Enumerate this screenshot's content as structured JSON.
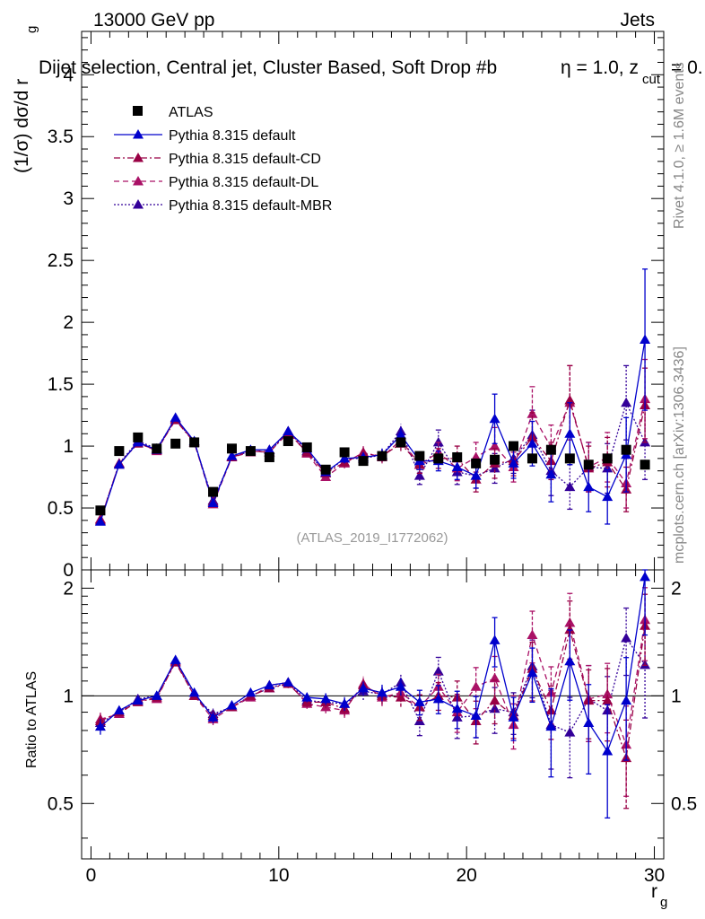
{
  "header": {
    "energy": "13000 GeV pp",
    "process": "Jets",
    "selection": "Dijet selection, Central jet, Cluster Based, Soft Drop #b",
    "eta_part": "η = 1.0, z",
    "zcut_sub": "cut",
    "zcut_tail": "= 0.",
    "rivet": "Rivet 4.1.0, ≥ 1.6M events",
    "mcplots": "mcplots.cern.ch [arXiv:1306.3436]",
    "analysis": "(ATLAS_2019_I1772062)"
  },
  "axes": {
    "y_main": "(1/σ) dσ/d r",
    "y_main_sub": "g",
    "y_ratio": "Ratio to ATLAS",
    "x_label": "r",
    "x_label_sub": "g"
  },
  "colors": {
    "atlas": "#000000",
    "default": "#0000cc",
    "cd": "#990044",
    "dl": "#aa1166",
    "mbr": "#330099"
  },
  "chart_data": {
    "type": "scatter",
    "x": [
      0.5,
      1.5,
      2.5,
      3.5,
      4.5,
      5.5,
      6.5,
      7.5,
      8.5,
      9.5,
      10.5,
      11.5,
      12.5,
      13.5,
      14.5,
      15.5,
      16.5,
      17.5,
      18.5,
      19.5,
      20.5,
      21.5,
      22.5,
      23.5,
      24.5,
      25.5,
      26.5,
      27.5,
      28.5,
      29.5
    ],
    "xlim": [
      -0.5,
      30.5
    ],
    "xticks": [
      0,
      10,
      20,
      30
    ],
    "main_ylim": [
      0,
      4.35
    ],
    "main_yticks": [
      0.5,
      1,
      1.5,
      2,
      2.5,
      3,
      3.5,
      4
    ],
    "main_ytick_labels": [
      "0.5",
      "1",
      "1.5",
      "2",
      "2.5",
      "3",
      "3.5",
      "4"
    ],
    "main_zero_label": "0",
    "ratio_ylim": [
      0.35,
      2.25
    ],
    "ratio_yticks": [
      0.5,
      1,
      2
    ],
    "legend": [
      {
        "key": "atlas",
        "label": "ATLAS",
        "marker": "square",
        "dash": ""
      },
      {
        "key": "default",
        "label": "Pythia 8.315 default",
        "marker": "triangle",
        "dash": ""
      },
      {
        "key": "cd",
        "label": "Pythia 8.315 default-CD",
        "marker": "triangle",
        "dash": "7,3,2,3"
      },
      {
        "key": "dl",
        "label": "Pythia 8.315 default-DL",
        "marker": "triangle",
        "dash": "6,4"
      },
      {
        "key": "mbr",
        "label": "Pythia 8.315 default-MBR",
        "marker": "triangle",
        "dash": "2,2"
      }
    ],
    "atlas": [
      0.48,
      0.96,
      1.07,
      0.98,
      1.02,
      1.03,
      0.63,
      0.98,
      0.96,
      0.91,
      1.04,
      0.99,
      0.81,
      0.95,
      0.88,
      0.92,
      1.03,
      0.92,
      0.9,
      0.91,
      0.86,
      0.89,
      1.0,
      0.9,
      0.97,
      0.9,
      0.85,
      0.9,
      0.97,
      0.85
    ],
    "series": [
      {
        "key": "default",
        "name": "Pythia 8.315 default",
        "values": [
          0.39,
          0.85,
          1.03,
          0.97,
          1.23,
          1.04,
          0.54,
          0.92,
          0.97,
          0.97,
          1.12,
          0.98,
          0.79,
          0.9,
          0.91,
          0.93,
          1.09,
          0.88,
          0.88,
          0.83,
          0.76,
          1.22,
          0.86,
          1.02,
          0.77,
          1.1,
          0.67,
          0.59,
          0.93,
          1.86
        ],
        "err": [
          0.02,
          0.02,
          0.02,
          0.02,
          0.02,
          0.02,
          0.02,
          0.02,
          0.02,
          0.02,
          0.03,
          0.03,
          0.03,
          0.04,
          0.04,
          0.05,
          0.06,
          0.07,
          0.08,
          0.1,
          0.1,
          0.2,
          0.12,
          0.18,
          0.22,
          0.25,
          0.2,
          0.22,
          0.3,
          0.57
        ]
      },
      {
        "key": "cd",
        "name": "Pythia 8.315 default-CD",
        "values": [
          0.4,
          0.86,
          1.02,
          0.97,
          1.21,
          1.03,
          0.55,
          0.91,
          0.96,
          0.95,
          1.11,
          0.95,
          0.78,
          0.87,
          0.94,
          0.92,
          1.02,
          0.85,
          0.9,
          0.9,
          0.73,
          0.86,
          0.88,
          1.07,
          0.88,
          1.37,
          0.82,
          0.87,
          0.65,
          1.33
        ],
        "err": [
          0.02,
          0.02,
          0.02,
          0.02,
          0.02,
          0.02,
          0.02,
          0.02,
          0.02,
          0.02,
          0.03,
          0.03,
          0.03,
          0.04,
          0.05,
          0.05,
          0.06,
          0.07,
          0.08,
          0.1,
          0.1,
          0.12,
          0.12,
          0.2,
          0.15,
          0.28,
          0.18,
          0.2,
          0.18,
          0.3
        ]
      },
      {
        "key": "dl",
        "name": "Pythia 8.315 default-DL",
        "values": [
          0.41,
          0.85,
          1.03,
          0.96,
          1.22,
          1.03,
          0.53,
          0.91,
          0.95,
          0.97,
          1.12,
          0.94,
          0.75,
          0.86,
          0.95,
          0.91,
          1.05,
          0.85,
          0.95,
          0.82,
          0.91,
          1.0,
          0.83,
          1.26,
          0.99,
          1.35,
          0.83,
          0.91,
          0.7,
          1.38
        ],
        "err": [
          0.02,
          0.02,
          0.02,
          0.02,
          0.02,
          0.02,
          0.02,
          0.02,
          0.02,
          0.02,
          0.03,
          0.03,
          0.03,
          0.04,
          0.05,
          0.05,
          0.06,
          0.07,
          0.08,
          0.1,
          0.12,
          0.15,
          0.12,
          0.22,
          0.18,
          0.3,
          0.2,
          0.2,
          0.2,
          0.32
        ]
      },
      {
        "key": "mbr",
        "name": "Pythia 8.315 default-MBR",
        "values": [
          0.4,
          0.86,
          1.04,
          0.98,
          1.22,
          1.03,
          0.56,
          0.91,
          0.96,
          0.95,
          1.12,
          0.96,
          0.78,
          0.9,
          0.9,
          0.93,
          1.12,
          0.76,
          1.03,
          0.79,
          0.76,
          0.82,
          0.9,
          1.09,
          0.8,
          0.67,
          0.83,
          0.82,
          1.35,
          1.03
        ],
        "err": [
          0.02,
          0.02,
          0.02,
          0.02,
          0.02,
          0.02,
          0.02,
          0.02,
          0.02,
          0.02,
          0.03,
          0.03,
          0.03,
          0.04,
          0.05,
          0.05,
          0.06,
          0.07,
          0.1,
          0.1,
          0.1,
          0.12,
          0.12,
          0.2,
          0.2,
          0.18,
          0.2,
          0.2,
          0.3,
          0.3
        ]
      }
    ],
    "ratio_series": [
      {
        "key": "default",
        "values": [
          0.82,
          0.91,
          0.97,
          1.0,
          1.26,
          1.02,
          0.87,
          0.94,
          1.02,
          1.07,
          1.09,
          0.99,
          0.98,
          0.95,
          1.05,
          1.02,
          1.06,
          0.96,
          0.98,
          0.92,
          0.88,
          1.43,
          0.87,
          1.16,
          0.82,
          1.25,
          0.84,
          0.7,
          0.97,
          2.15
        ]
      },
      {
        "key": "cd",
        "values": [
          0.85,
          0.9,
          0.96,
          0.99,
          1.24,
          1.0,
          0.88,
          0.93,
          1.0,
          1.05,
          1.08,
          0.96,
          0.96,
          0.92,
          1.07,
          1.0,
          0.99,
          0.93,
          1.0,
          0.99,
          0.85,
          0.97,
          0.88,
          1.19,
          0.91,
          1.53,
          0.97,
          0.97,
          0.67,
          1.57
        ]
      },
      {
        "key": "dl",
        "values": [
          0.86,
          0.89,
          0.97,
          0.98,
          1.25,
          1.0,
          0.86,
          0.93,
          0.99,
          1.07,
          1.09,
          0.95,
          0.93,
          0.91,
          1.08,
          0.99,
          1.02,
          0.93,
          1.06,
          0.9,
          1.06,
          1.12,
          0.83,
          1.48,
          1.02,
          1.6,
          0.98,
          1.01,
          0.73,
          1.63
        ]
      },
      {
        "key": "mbr",
        "values": [
          0.84,
          0.9,
          0.98,
          1.0,
          1.25,
          1.0,
          0.89,
          0.93,
          1.0,
          1.05,
          1.09,
          0.97,
          0.96,
          0.95,
          1.03,
          1.01,
          1.09,
          0.85,
          1.17,
          0.87,
          0.88,
          0.92,
          0.9,
          1.21,
          0.83,
          0.79,
          0.98,
          0.91,
          1.45,
          1.22
        ]
      }
    ]
  }
}
